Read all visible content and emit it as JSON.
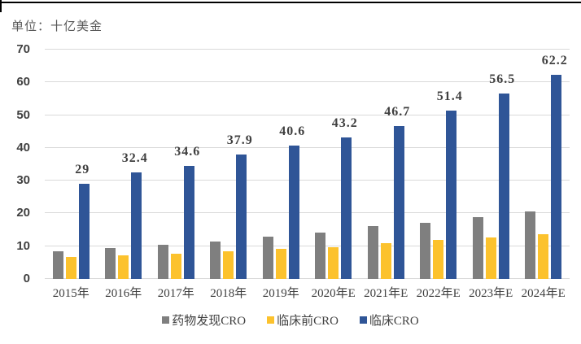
{
  "unit_label": "单位：十亿美金",
  "chart_data": {
    "type": "bar",
    "title": "",
    "unit": "单位：十亿美金",
    "categories": [
      "2015年",
      "2016年",
      "2017年",
      "2018年",
      "2019年",
      "2020年E",
      "2021年E",
      "2022年E",
      "2023年E",
      "2024年E"
    ],
    "series": [
      {
        "name": "药物发现CRO",
        "color": "#7f7f7f",
        "values": [
          8.5,
          9.5,
          10.4,
          11.5,
          12.9,
          14.2,
          16.1,
          17.2,
          18.9,
          20.6
        ],
        "show_labels": false
      },
      {
        "name": "临床前CRO",
        "color": "#fcc22d",
        "values": [
          6.8,
          7.1,
          7.7,
          8.5,
          9.1,
          9.8,
          10.9,
          11.9,
          12.6,
          13.7
        ],
        "show_labels": false
      },
      {
        "name": "临床CRO",
        "color": "#2f5597",
        "values": [
          29,
          32.4,
          34.6,
          37.9,
          40.6,
          43.2,
          46.7,
          51.4,
          56.5,
          62.2
        ],
        "show_labels": true,
        "data_labels": [
          "29",
          "32.4",
          "34.6",
          "37.9",
          "40.6",
          "43.2",
          "46.7",
          "51.4",
          "56.5",
          "62.2"
        ]
      }
    ],
    "ylim": [
      0,
      70
    ],
    "yticks": [
      0,
      10,
      20,
      30,
      40,
      50,
      60,
      70
    ],
    "grid": true,
    "legend_position": "bottom",
    "label_color": "#3f3f3f",
    "axis_label_color": "#404040"
  }
}
